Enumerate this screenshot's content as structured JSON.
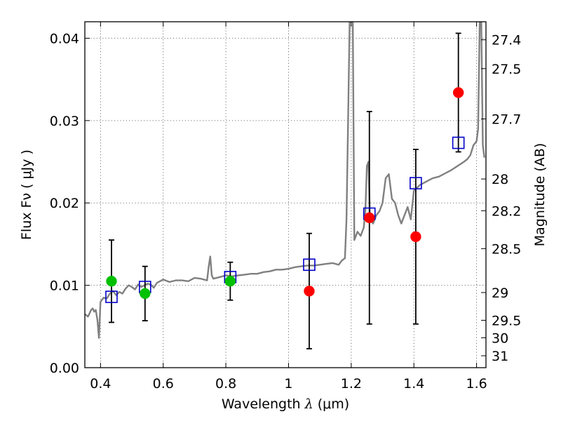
{
  "chart_data": {
    "type": "scatter",
    "xlabel": "Wavelength  λ (μm)",
    "ylabel": "Flux  Fν  ( μJy )",
    "ylabel_right": "Magnitude (AB)",
    "xlim": [
      0.35,
      1.63
    ],
    "ylim": [
      0.0,
      0.042
    ],
    "grid": true,
    "x_ticks": [
      0.4,
      0.6,
      0.8,
      1.0,
      1.2,
      1.4,
      1.6
    ],
    "x_tick_labels": [
      "0.4",
      "0.6",
      "0.8",
      "1",
      "1.2",
      "1.4",
      "1.6"
    ],
    "y_ticks": [
      0.0,
      0.01,
      0.02,
      0.03,
      0.04
    ],
    "y_tick_labels": [
      "0.00",
      "0.01",
      "0.02",
      "0.03",
      "0.04"
    ],
    "magnitude_ticks": [
      "27.4",
      "27.5",
      "27.7",
      "28",
      "28.2",
      "28.5",
      "29",
      "29.5",
      "30",
      "31"
    ],
    "series": [
      {
        "marker": "square-open",
        "color": "#0000cc",
        "x": [
          0.435,
          0.542,
          0.814,
          1.066,
          1.258,
          1.406,
          1.542
        ],
        "y": [
          0.0086,
          0.0098,
          0.011,
          0.0125,
          0.0187,
          0.0224,
          0.0273
        ]
      },
      {
        "marker": "circle",
        "color": "#00c000",
        "x": [
          0.435,
          0.542,
          0.814
        ],
        "y": [
          0.0105,
          0.009,
          0.0105
        ],
        "err": [
          0.005,
          0.0033,
          0.0023
        ]
      },
      {
        "marker": "circle",
        "color": "#ff0000",
        "x": [
          1.066,
          1.258,
          1.406,
          1.542
        ],
        "y": [
          0.0093,
          0.0182,
          0.0159,
          0.0334
        ],
        "err": [
          0.007,
          0.0129,
          0.0106,
          0.0072
        ]
      },
      {
        "marker": "line",
        "color": "#808080",
        "x": [
          0.35,
          0.36,
          0.37,
          0.375,
          0.38,
          0.385,
          0.39,
          0.395,
          0.4,
          0.41,
          0.42,
          0.43,
          0.44,
          0.45,
          0.46,
          0.47,
          0.48,
          0.49,
          0.5,
          0.51,
          0.52,
          0.53,
          0.54,
          0.55,
          0.56,
          0.57,
          0.58,
          0.6,
          0.62,
          0.64,
          0.66,
          0.68,
          0.7,
          0.72,
          0.74,
          0.745,
          0.75,
          0.755,
          0.76,
          0.78,
          0.8,
          0.82,
          0.84,
          0.86,
          0.88,
          0.9,
          0.92,
          0.94,
          0.96,
          0.98,
          1.0,
          1.02,
          1.04,
          1.06,
          1.08,
          1.1,
          1.12,
          1.14,
          1.16,
          1.17,
          1.18,
          1.185,
          1.19,
          1.195,
          1.2,
          1.205,
          1.21,
          1.22,
          1.23,
          1.24,
          1.245,
          1.25,
          1.255,
          1.26,
          1.27,
          1.28,
          1.29,
          1.3,
          1.31,
          1.32,
          1.33,
          1.34,
          1.35,
          1.36,
          1.37,
          1.38,
          1.39,
          1.4,
          1.42,
          1.44,
          1.46,
          1.48,
          1.5,
          1.52,
          1.54,
          1.56,
          1.57,
          1.58,
          1.59,
          1.6,
          1.605,
          1.61,
          1.615,
          1.62,
          1.625
        ],
        "y": [
          0.0065,
          0.0062,
          0.007,
          0.0072,
          0.0068,
          0.007,
          0.0058,
          0.0036,
          0.008,
          0.0085,
          0.0084,
          0.009,
          0.0093,
          0.0088,
          0.0092,
          0.009,
          0.0096,
          0.01,
          0.0098,
          0.0095,
          0.0101,
          0.0098,
          0.01,
          0.0102,
          0.0101,
          0.0097,
          0.0103,
          0.0107,
          0.0104,
          0.0106,
          0.0106,
          0.0105,
          0.0109,
          0.0108,
          0.0106,
          0.0122,
          0.0135,
          0.0112,
          0.0108,
          0.011,
          0.0112,
          0.0111,
          0.0112,
          0.0113,
          0.0114,
          0.0114,
          0.0116,
          0.0117,
          0.0119,
          0.0119,
          0.012,
          0.0122,
          0.0123,
          0.0124,
          0.0124,
          0.0125,
          0.0126,
          0.0127,
          0.0125,
          0.013,
          0.0133,
          0.018,
          0.03,
          0.042,
          0.042,
          0.042,
          0.0155,
          0.0165,
          0.016,
          0.017,
          0.019,
          0.0245,
          0.025,
          0.018,
          0.0175,
          0.0185,
          0.019,
          0.02,
          0.023,
          0.0235,
          0.0205,
          0.02,
          0.0185,
          0.0175,
          0.0185,
          0.0195,
          0.018,
          0.0215,
          0.0222,
          0.0226,
          0.023,
          0.0232,
          0.0236,
          0.024,
          0.0245,
          0.025,
          0.0253,
          0.0258,
          0.027,
          0.0275,
          0.029,
          0.042,
          0.042,
          0.027,
          0.0255
        ]
      }
    ]
  }
}
